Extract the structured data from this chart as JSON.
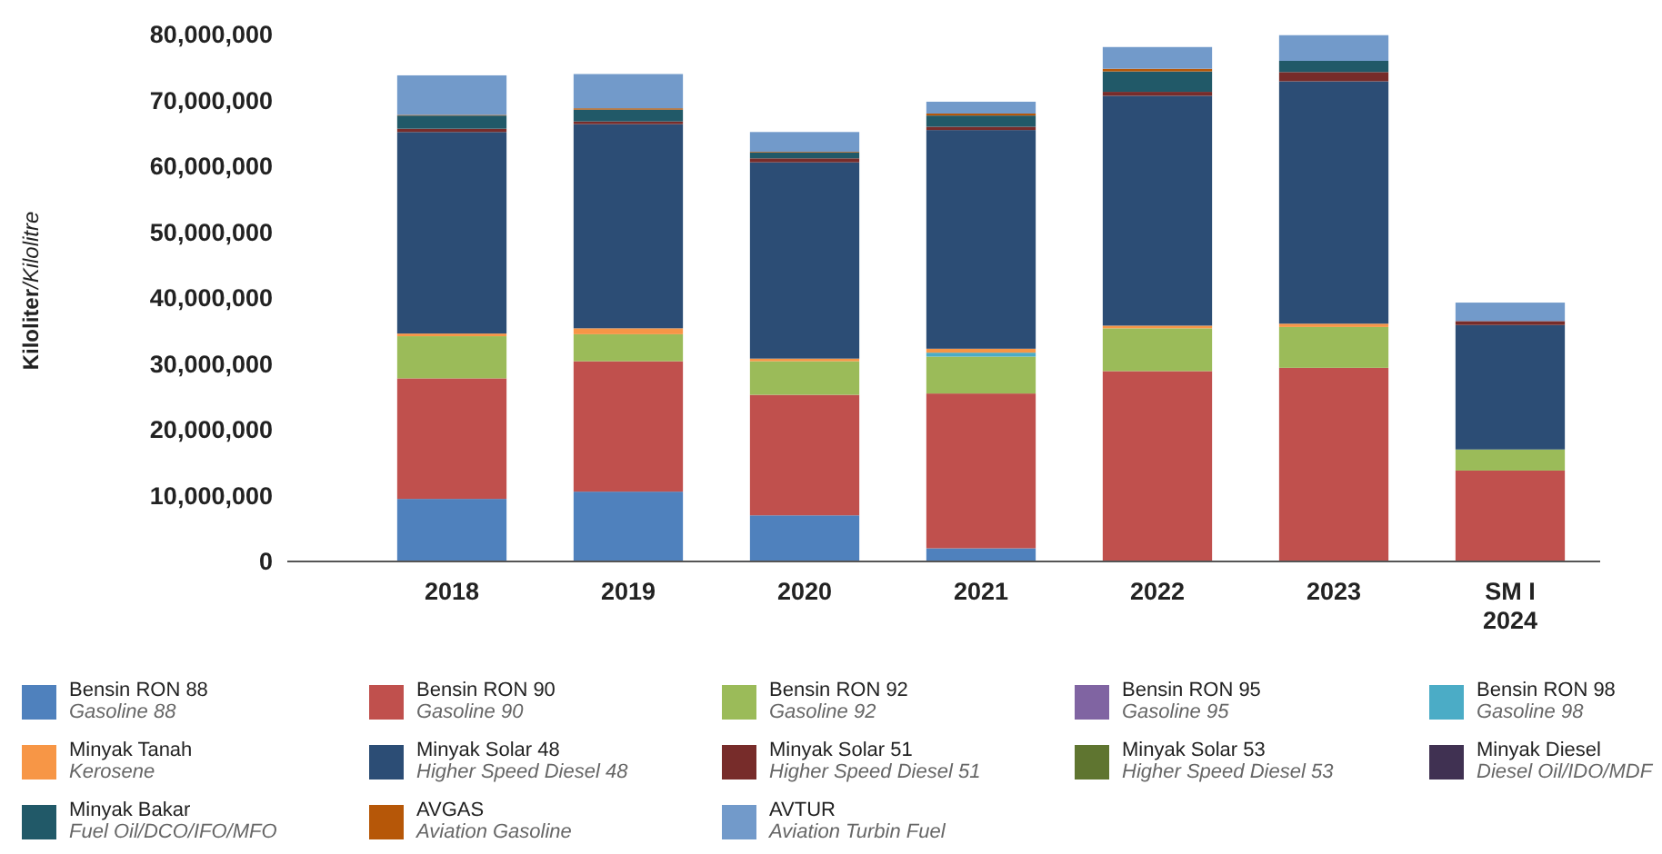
{
  "chart_data": {
    "type": "bar",
    "stacked": true,
    "ylabel": "Kiloliter/Kilolitre",
    "categories": [
      "2018",
      "2019",
      "2020",
      "2021",
      "2022",
      "2023",
      "SM I\n2024"
    ],
    "ylim": [
      0,
      80000000
    ],
    "yticks": [
      {
        "value": 0,
        "label": "0"
      },
      {
        "value": 10000000,
        "label": "10,000,000"
      },
      {
        "value": 20000000,
        "label": "20,000,000"
      },
      {
        "value": 30000000,
        "label": "30,000,000"
      },
      {
        "value": 40000000,
        "label": "40,000,000"
      },
      {
        "value": 50000000,
        "label": "50,000,000"
      },
      {
        "value": 60000000,
        "label": "60,000,000"
      },
      {
        "value": 70000000,
        "label": "70,000,000"
      },
      {
        "value": 80000000,
        "label": "80,000,000"
      }
    ],
    "grid": false,
    "legend": "bottom",
    "series": [
      {
        "name": "Bensin RON 88\nGasoline 88",
        "color": "#4f81bd",
        "values": [
          9500000,
          10600000,
          7000000,
          2000000,
          0,
          0,
          0
        ]
      },
      {
        "name": "Bensin RON 90\nGasoline 90",
        "color": "#c0504d",
        "values": [
          18300000,
          19800000,
          18300000,
          23500000,
          28900000,
          29400000,
          13800000
        ]
      },
      {
        "name": "Bensin RON 92\nGasoline 92",
        "color": "#9bbb59",
        "values": [
          6400000,
          4100000,
          5100000,
          5600000,
          6500000,
          6200000,
          3200000
        ]
      },
      {
        "name": "Bensin RON 95\nGasoline 95",
        "color": "#8064a2",
        "values": [
          0,
          0,
          0,
          0,
          0,
          0,
          0
        ]
      },
      {
        "name": "Bensin RON 98\nGasoline 98",
        "color": "#4bacc6",
        "values": [
          0,
          0,
          0,
          600000,
          0,
          0,
          0
        ]
      },
      {
        "name": "Minyak Tanah\nKerosene",
        "color": "#f79646",
        "values": [
          400000,
          900000,
          400000,
          600000,
          400000,
          500000,
          0
        ]
      },
      {
        "name": "Minyak Solar 48\nHigher Speed Diesel 48",
        "color": "#2c4d75",
        "values": [
          30600000,
          31000000,
          29800000,
          33200000,
          34900000,
          36800000,
          18900000
        ]
      },
      {
        "name": "Minyak Solar 51\nHigher Speed Diesel 51",
        "color": "#772c2a",
        "values": [
          500000,
          400000,
          600000,
          500000,
          600000,
          1400000,
          600000
        ]
      },
      {
        "name": "Minyak Solar 53\nHigher Speed Diesel 53",
        "color": "#5f7530",
        "values": [
          0,
          0,
          0,
          0,
          0,
          0,
          0
        ]
      },
      {
        "name": "Minyak Diesel\nDiesel Oil/IDO/MDF",
        "color": "#403152",
        "values": [
          0,
          0,
          0,
          0,
          0,
          0,
          0
        ]
      },
      {
        "name": "Minyak Bakar\nFuel Oil/DCO/IFO/MFO",
        "color": "#215968",
        "values": [
          2000000,
          1800000,
          900000,
          1700000,
          3100000,
          1700000,
          0
        ]
      },
      {
        "name": "AVGAS\nAviation Gasoline",
        "color": "#b65708",
        "values": [
          100000,
          200000,
          100000,
          300000,
          400000,
          null,
          0
        ]
      },
      {
        "name": "AVTUR\nAviation Turbin Fuel",
        "color": "#729aca",
        "values": [
          6000000,
          5200000,
          3000000,
          1800000,
          3300000,
          3900000,
          2800000
        ]
      }
    ]
  }
}
